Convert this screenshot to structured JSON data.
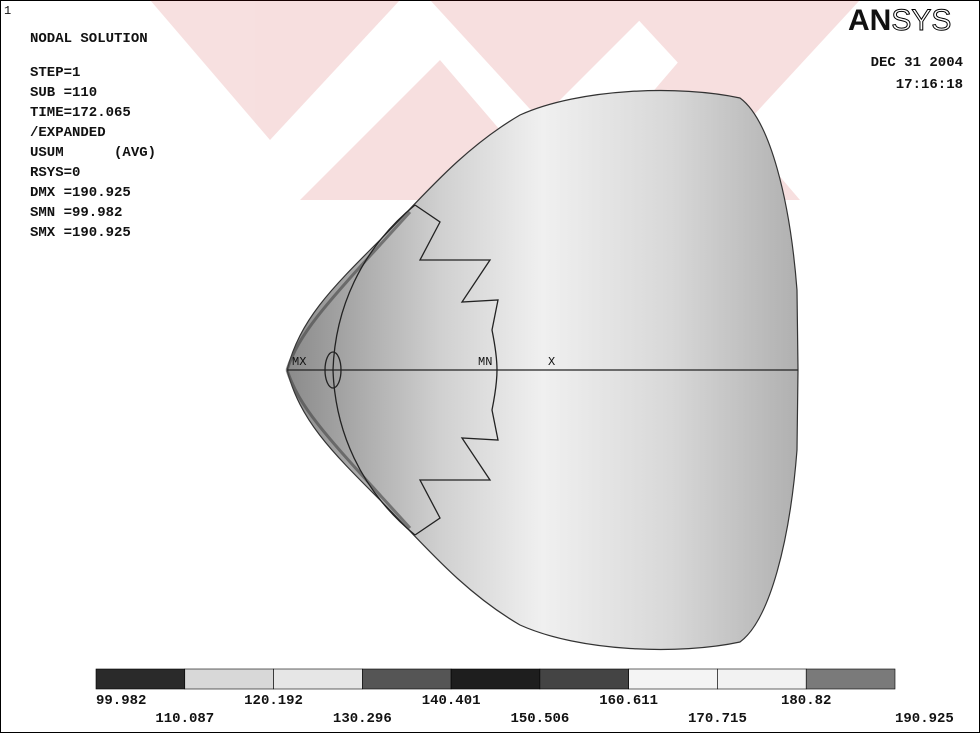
{
  "window_number": "1",
  "header": {
    "title": "NODAL SOLUTION",
    "lines": [
      "STEP=1",
      "SUB =110",
      "TIME=172.065",
      "/EXPANDED",
      "USUM      (AVG)",
      "RSYS=0",
      "DMX =190.925",
      "SMN =99.982",
      "SMX =190.925"
    ]
  },
  "logo": {
    "bold": "AN",
    "outline": "SYS"
  },
  "date": "DEC 31 2004",
  "time": "17:16:18",
  "plot_labels": {
    "max": "MX",
    "min": "MN",
    "axis": "X"
  },
  "legend": {
    "labels": [
      99.982,
      110.087,
      120.192,
      130.296,
      140.401,
      150.506,
      160.611,
      170.715,
      180.82,
      190.925
    ],
    "colors": [
      "#2a2a2a",
      "#d8d8d8",
      "#e6e6e6",
      "#555555",
      "#1e1e1e",
      "#444444",
      "#f4f4f4",
      "#f2f2f2",
      "#7a7a7a"
    ]
  }
}
